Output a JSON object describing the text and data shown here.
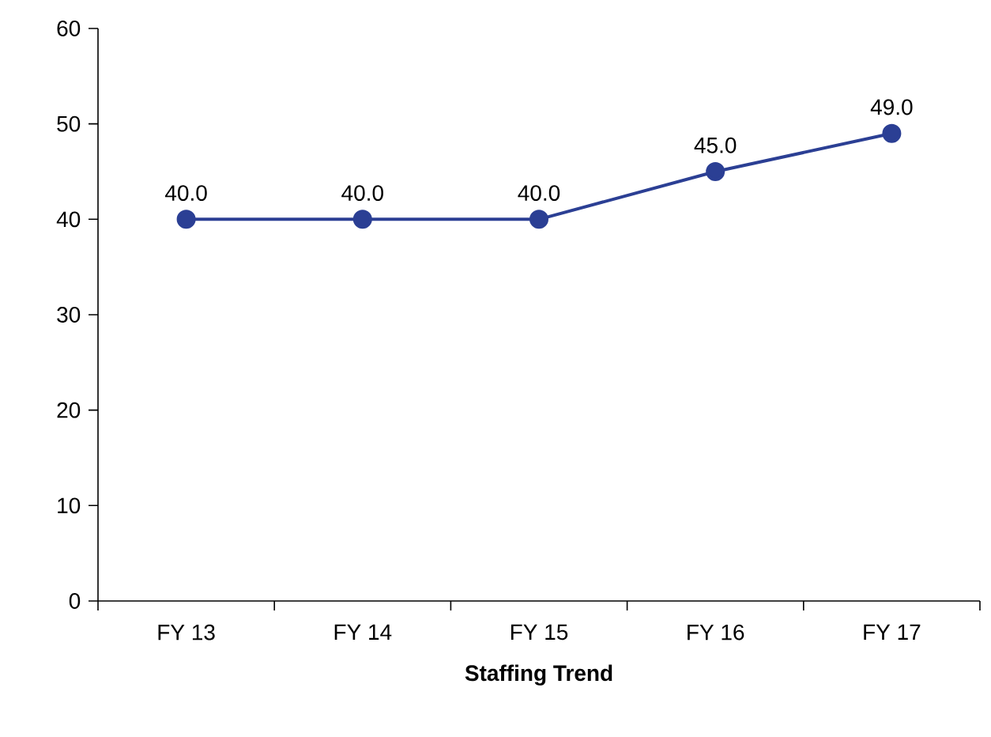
{
  "chart_data": {
    "type": "line",
    "xlabel": "**Staffing Trend**",
    "categories": [
      "FY 13",
      "FY 14",
      "FY 15",
      "FY 16",
      "FY 17"
    ],
    "series": [
      {
        "color": "#2b3f94",
        "values": [
          40.0,
          40.0,
          40.0,
          45.0,
          49.0
        ],
        "value_labels": [
          "40.0",
          "40.0",
          "40.0",
          "45.0",
          "49.0"
        ]
      }
    ],
    "ylim": [
      0,
      60
    ],
    "yticks": [
      0,
      10,
      20,
      30,
      40,
      50,
      60
    ],
    "grid": false,
    "marker": "circle",
    "line_style": "solid"
  }
}
